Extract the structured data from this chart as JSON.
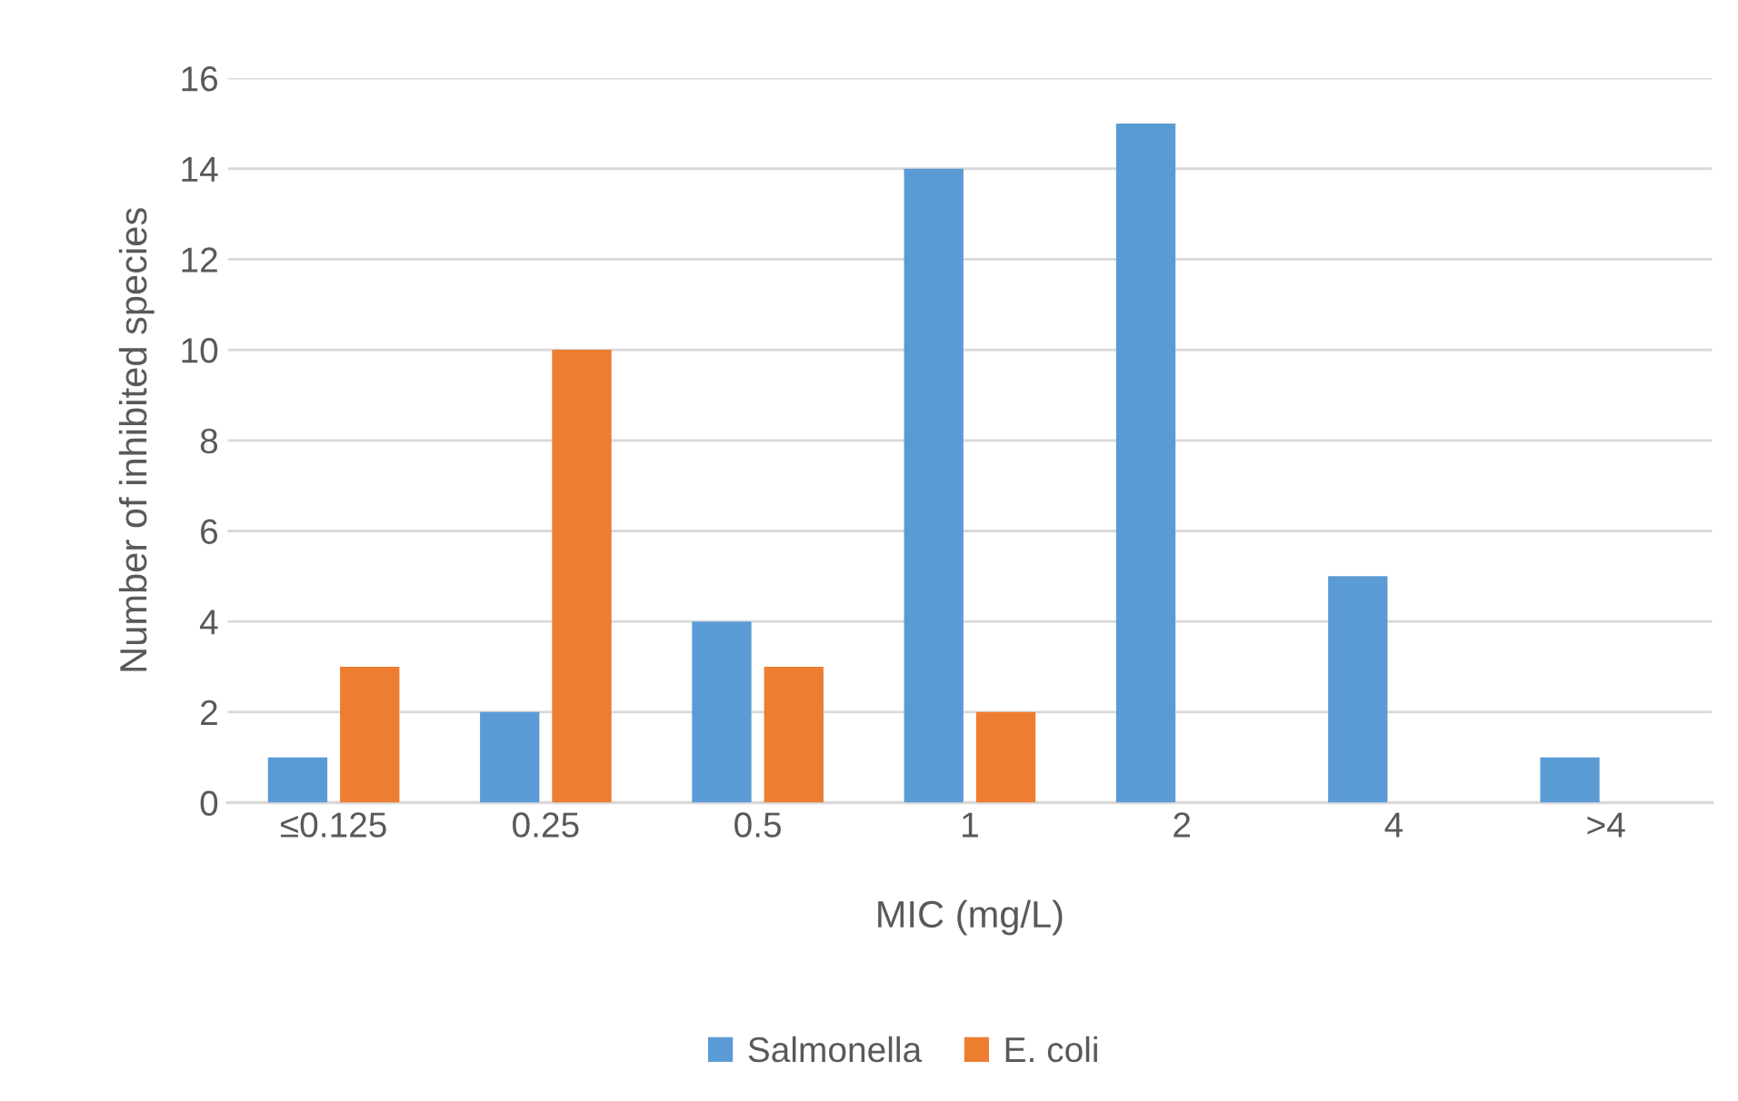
{
  "chart_data": {
    "type": "bar",
    "categories": [
      "≤0.125",
      "0.25",
      "0.5",
      "1",
      "2",
      "4",
      ">4"
    ],
    "xlabel": "MIC (mg/L)",
    "ylabel": "Number of inhibited species",
    "series": [
      {
        "name": "Salmonella",
        "color": "#5b9bd5",
        "values": [
          1,
          2,
          4,
          14,
          15,
          5,
          1
        ]
      },
      {
        "name": "E. coli",
        "color": "#ed7d31",
        "values": [
          3,
          10,
          3,
          2,
          0,
          0,
          0
        ]
      }
    ],
    "ylim": [
      0,
      16
    ],
    "yticks": [
      0,
      2,
      4,
      6,
      8,
      10,
      12,
      14,
      16
    ],
    "grid": "y",
    "legend": "bottom"
  }
}
